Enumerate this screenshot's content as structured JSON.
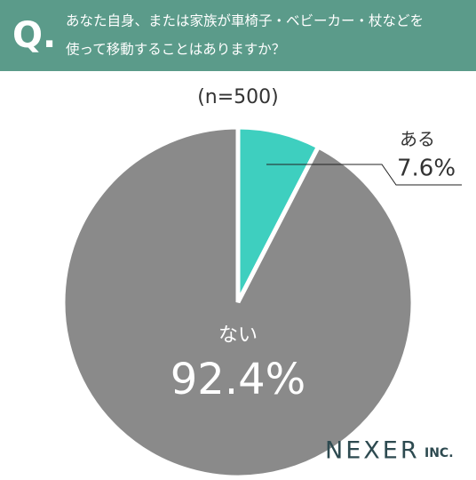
{
  "chart_data": {
    "type": "pie",
    "question_mark": "Q.",
    "title_lines": [
      "あなた自身、または家族が車椅子・ベビーカー・杖などを",
      "使って移動することはありますか？"
    ],
    "subtitle": "(n=500)",
    "categories": [
      "ある",
      "ない"
    ],
    "values": [
      7.6,
      92.4
    ],
    "value_labels": [
      "7.6%",
      "92.4%"
    ],
    "colors": [
      "#3ecfbf",
      "#8a8a8a"
    ],
    "brand": "NEXER",
    "brand_suffix": "INC."
  }
}
